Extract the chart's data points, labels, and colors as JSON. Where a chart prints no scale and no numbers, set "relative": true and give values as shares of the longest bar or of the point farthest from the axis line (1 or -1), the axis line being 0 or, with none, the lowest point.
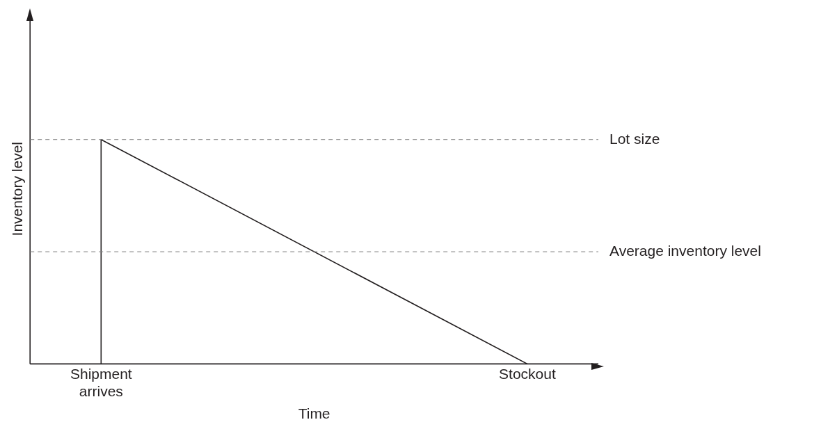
{
  "chart_data": {
    "type": "line",
    "relative": true,
    "xlabel": "Time",
    "ylabel": "Inventory level",
    "categories": [
      null,
      "Shipment arrives",
      null,
      null,
      null,
      null,
      null,
      "Stockout",
      null
    ],
    "series": [
      {
        "color": "#231f20",
        "x": [
          "Shipment arrives",
          "Shipment arrives",
          "Stockout"
        ],
        "values": [
          0,
          1,
          0
        ]
      }
    ],
    "ref_lines": [
      {
        "axis": "y",
        "value": 1,
        "label": "Lot size",
        "color": "#808080",
        "line_style": "dashed"
      },
      {
        "axis": "y",
        "value": 0.5,
        "label": "Average inventory level",
        "color": "#808080",
        "line_style": "dashed"
      }
    ],
    "marker": "none",
    "line_style": "solid",
    "grid": false,
    "legend": false,
    "tick_labels": "x"
  }
}
